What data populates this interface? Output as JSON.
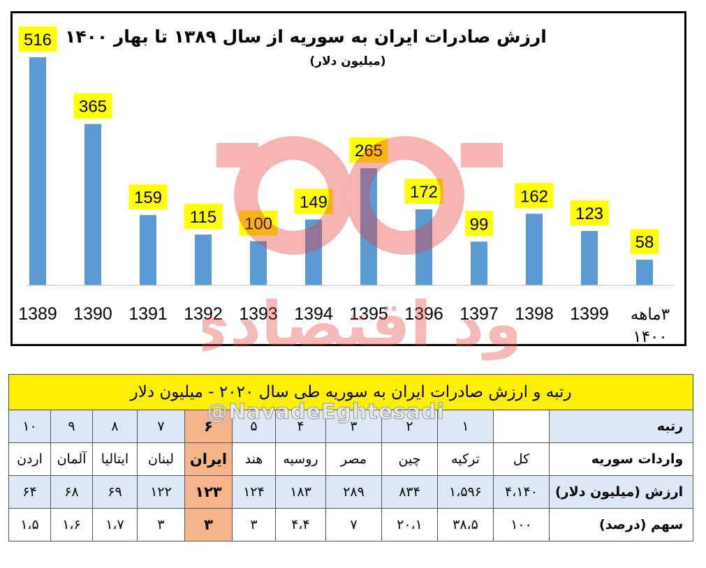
{
  "chart_data": {
    "type": "bar",
    "title": "ارزش صادرات ایران به سوریه از سال ۱۳۸۹ تا بهار ۱۴۰۰",
    "subtitle": "(میلیون دلار)",
    "categories": [
      "1389",
      "1390",
      "1391",
      "1392",
      "1393",
      "1394",
      "1395",
      "1396",
      "1397",
      "1398",
      "1399",
      "۳ماهه ۱۴۰۰"
    ],
    "values": [
      516,
      365,
      159,
      115,
      100,
      149,
      265,
      172,
      99,
      162,
      123,
      58
    ],
    "bar_color": "#5b9bd5",
    "label_bg": "#ffff00",
    "grid": false,
    "legend": "none"
  },
  "watermark": {
    "handle": "@NavadeEghtesadi",
    "logo_text": "نود اقتصادی"
  },
  "table": {
    "title": "رتبه و ارزش صادرات ایران به سوریه طی سال ۲۰۲۰ - میلیون دلار",
    "rank_header": "رتبه",
    "importer_header": "واردات سوریه",
    "value_header": "ارزش (میلیون دلار)",
    "share_header": "سهم (درصد)",
    "columns": [
      {
        "rank": "",
        "country": "کل",
        "value": "۴،۱۴۰",
        "share": "۱۰۰"
      },
      {
        "rank": "۱",
        "country": "ترکیه",
        "value": "۱،۵۹۶",
        "share": "۳۸،۵"
      },
      {
        "rank": "۲",
        "country": "چین",
        "value": "۸۳۴",
        "share": "۲۰،۱"
      },
      {
        "rank": "۳",
        "country": "مصر",
        "value": "۲۸۹",
        "share": "۷"
      },
      {
        "rank": "۴",
        "country": "روسیه",
        "value": "۱۸۳",
        "share": "۴،۴"
      },
      {
        "rank": "۵",
        "country": "هند",
        "value": "۱۲۴",
        "share": "۳"
      },
      {
        "rank": "۶",
        "country": "ایران",
        "value": "۱۲۳",
        "share": "۳"
      },
      {
        "rank": "۷",
        "country": "لبنان",
        "value": "۱۲۲",
        "share": "۳"
      },
      {
        "rank": "۸",
        "country": "ایتالیا",
        "value": "۶۹",
        "share": "۱،۷"
      },
      {
        "rank": "۹",
        "country": "آلمان",
        "value": "۶۸",
        "share": "۱،۶"
      },
      {
        "rank": "۱۰",
        "country": "اردن",
        "value": "۶۴",
        "share": "۱،۵"
      }
    ],
    "highlight_color": "#f5b48a"
  }
}
